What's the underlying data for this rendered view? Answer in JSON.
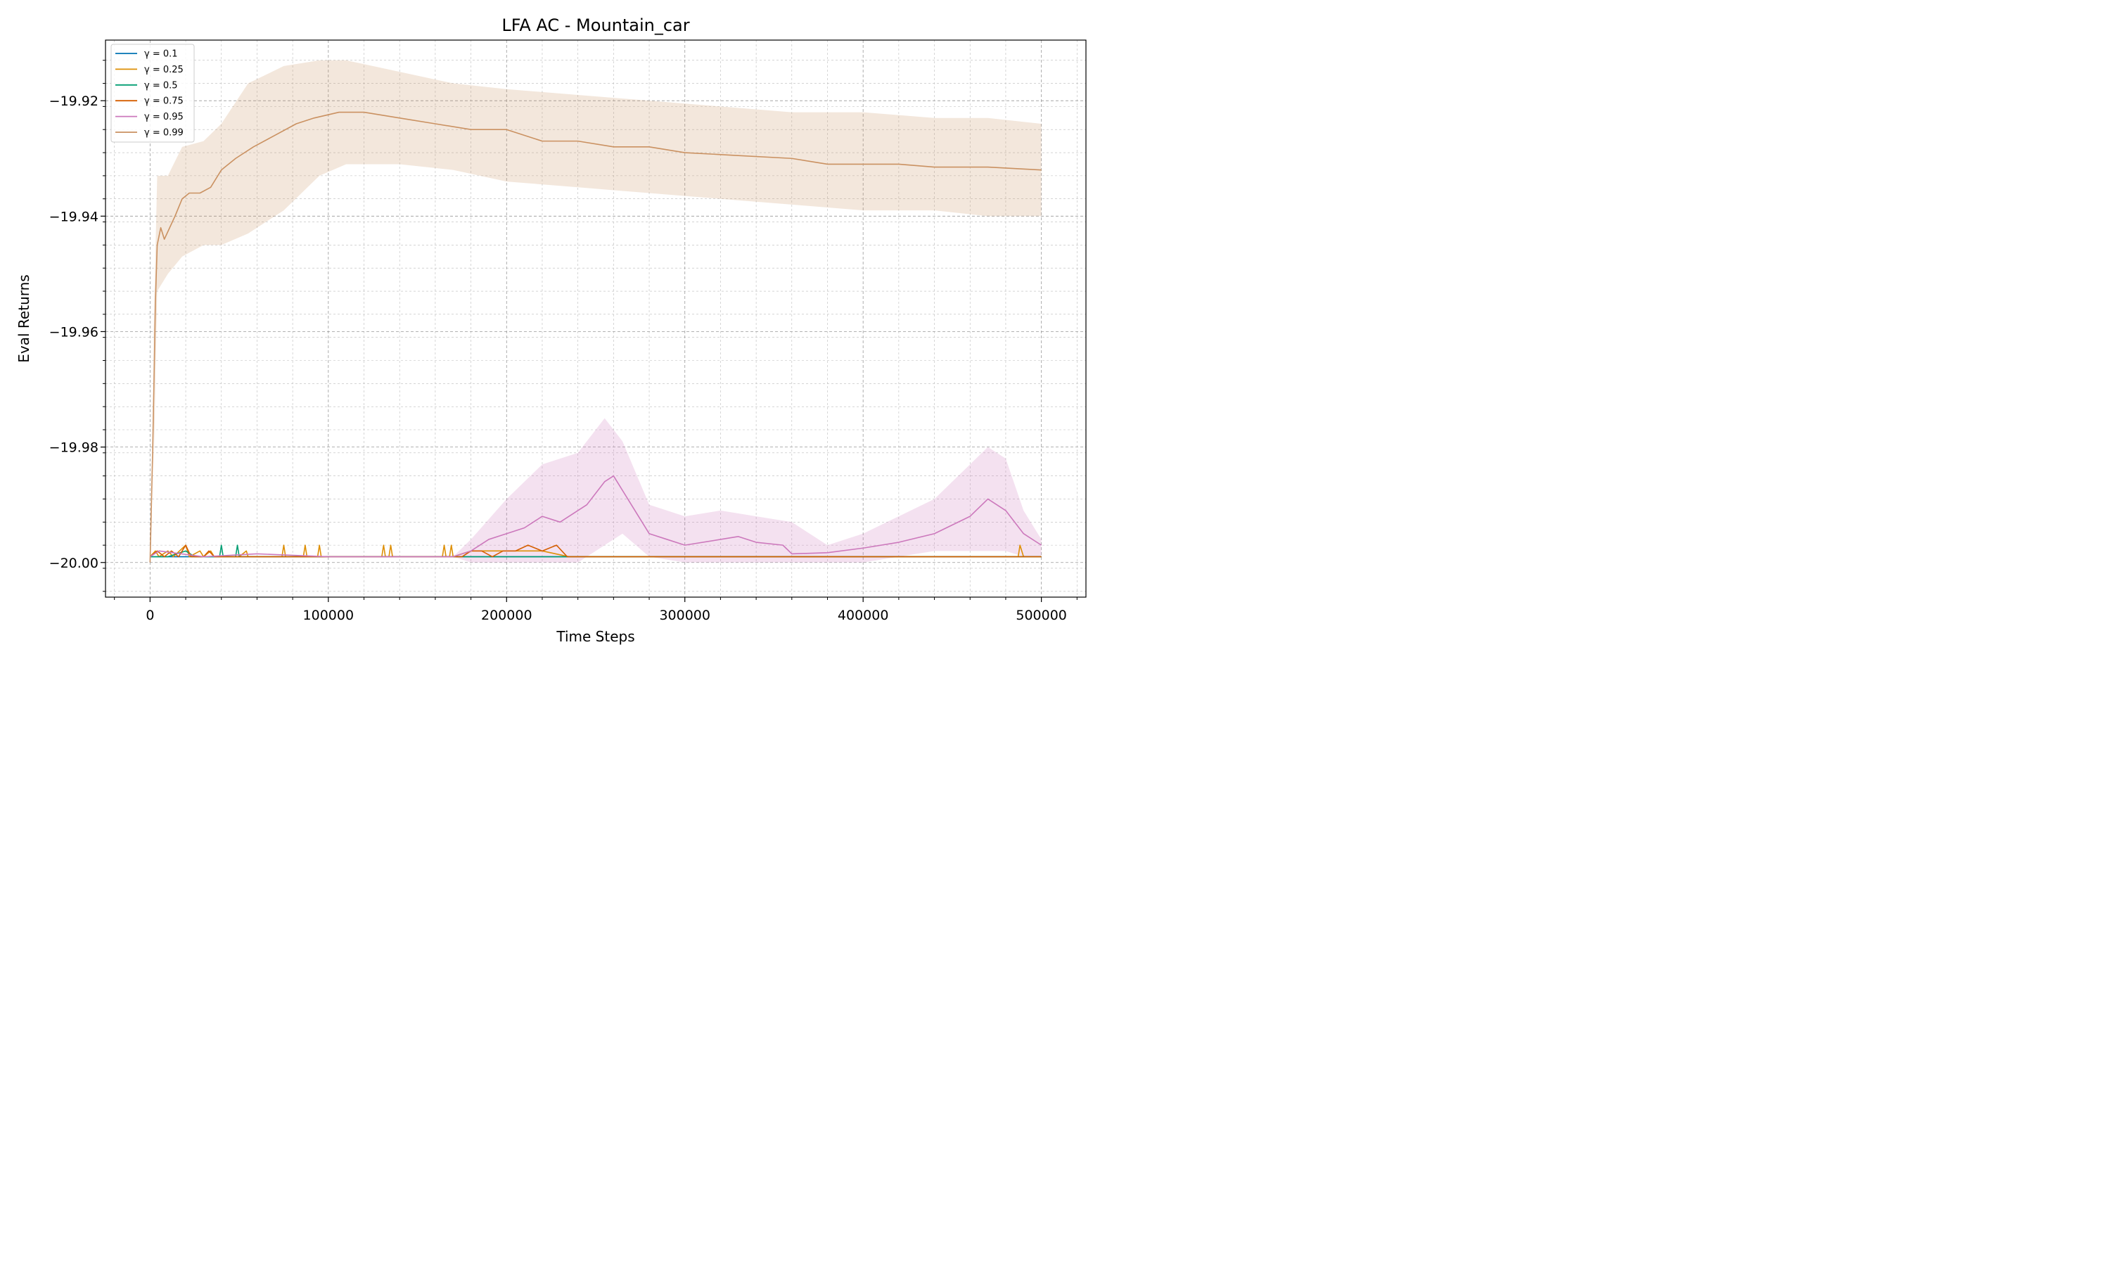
{
  "chart_data": {
    "type": "line",
    "title": "LFA AC - Mountain_car",
    "xlabel": "Time Steps",
    "ylabel": "Eval Returns",
    "xlim": [
      -25000,
      525000
    ],
    "ylim": [
      -20.006,
      -19.9095
    ],
    "x_major_ticks": [
      0,
      100000,
      200000,
      300000,
      400000,
      500000
    ],
    "x_tick_labels": [
      "0",
      "100000",
      "200000",
      "300000",
      "400000",
      "500000"
    ],
    "y_major_ticks": [
      -20.0,
      -19.98,
      -19.96,
      -19.94,
      -19.92
    ],
    "y_tick_labels": [
      "−20.00",
      "−19.98",
      "−19.96",
      "−19.94",
      "−19.92"
    ],
    "grid": true,
    "legend_position": "top-left",
    "series": [
      {
        "name": "γ = 0.1",
        "color": "#0173b2",
        "line": [
          [
            0,
            -19.999
          ],
          [
            20000,
            -19.999
          ],
          [
            60000,
            -19.999
          ],
          [
            200000,
            -19.999
          ],
          [
            500000,
            -19.999
          ]
        ]
      },
      {
        "name": "γ = 0.25",
        "color": "#de8f05",
        "line": [
          [
            0,
            -19.999
          ],
          [
            3000,
            -19.998
          ],
          [
            5000,
            -19.999
          ],
          [
            10000,
            -19.998
          ],
          [
            13000,
            -19.999
          ],
          [
            20000,
            -19.997
          ],
          [
            22000,
            -19.999
          ],
          [
            28000,
            -19.998
          ],
          [
            30000,
            -19.999
          ],
          [
            34000,
            -19.998
          ],
          [
            36000,
            -19.999
          ],
          [
            50000,
            -19.999
          ],
          [
            54000,
            -19.998
          ],
          [
            55000,
            -19.999
          ],
          [
            74000,
            -19.999
          ],
          [
            75000,
            -19.997
          ],
          [
            76000,
            -19.999
          ],
          [
            86000,
            -19.999
          ],
          [
            87000,
            -19.997
          ],
          [
            88000,
            -19.999
          ],
          [
            94000,
            -19.999
          ],
          [
            95000,
            -19.997
          ],
          [
            96000,
            -19.999
          ],
          [
            130000,
            -19.999
          ],
          [
            131000,
            -19.997
          ],
          [
            132000,
            -19.999
          ],
          [
            134000,
            -19.999
          ],
          [
            135000,
            -19.997
          ],
          [
            136000,
            -19.999
          ],
          [
            164000,
            -19.999
          ],
          [
            165000,
            -19.997
          ],
          [
            166000,
            -19.999
          ],
          [
            168000,
            -19.999
          ],
          [
            169000,
            -19.997
          ],
          [
            170000,
            -19.999
          ],
          [
            180000,
            -19.998
          ],
          [
            190000,
            -19.998
          ],
          [
            200000,
            -19.998
          ],
          [
            210000,
            -19.998
          ],
          [
            220000,
            -19.998
          ],
          [
            235000,
            -19.999
          ],
          [
            487000,
            -19.999
          ],
          [
            488000,
            -19.997
          ],
          [
            490000,
            -19.999
          ],
          [
            500000,
            -19.999
          ]
        ],
        "band": []
      },
      {
        "name": "γ = 0.5",
        "color": "#029e73",
        "line": [
          [
            0,
            -19.999
          ],
          [
            10000,
            -19.999
          ],
          [
            20000,
            -19.998
          ],
          [
            25000,
            -19.999
          ],
          [
            39000,
            -19.999
          ],
          [
            40000,
            -19.997
          ],
          [
            41000,
            -19.999
          ],
          [
            48000,
            -19.999
          ],
          [
            49000,
            -19.997
          ],
          [
            50000,
            -19.999
          ],
          [
            235000,
            -19.999
          ],
          [
            500000,
            -19.999
          ]
        ]
      },
      {
        "name": "γ = 0.75",
        "color": "#d55e00",
        "line": [
          [
            0,
            -19.999
          ],
          [
            4000,
            -19.998
          ],
          [
            8000,
            -19.999
          ],
          [
            12000,
            -19.998
          ],
          [
            16000,
            -19.999
          ],
          [
            20000,
            -19.997
          ],
          [
            23000,
            -19.999
          ],
          [
            30000,
            -19.999
          ],
          [
            33000,
            -19.998
          ],
          [
            36000,
            -19.999
          ],
          [
            175000,
            -19.999
          ],
          [
            180000,
            -19.998
          ],
          [
            186000,
            -19.998
          ],
          [
            192000,
            -19.999
          ],
          [
            198000,
            -19.998
          ],
          [
            205000,
            -19.998
          ],
          [
            212000,
            -19.997
          ],
          [
            220000,
            -19.998
          ],
          [
            228000,
            -19.997
          ],
          [
            234000,
            -19.999
          ],
          [
            240000,
            -19.999
          ],
          [
            500000,
            -19.999
          ]
        ]
      },
      {
        "name": "γ = 0.95",
        "color": "#cc78bc",
        "line": [
          [
            0,
            -19.999
          ],
          [
            5000,
            -19.998
          ],
          [
            30000,
            -19.999
          ],
          [
            60000,
            -19.9985
          ],
          [
            100000,
            -19.999
          ],
          [
            170000,
            -19.999
          ],
          [
            180000,
            -19.998
          ],
          [
            190000,
            -19.996
          ],
          [
            200000,
            -19.995
          ],
          [
            210000,
            -19.994
          ],
          [
            220000,
            -19.992
          ],
          [
            230000,
            -19.993
          ],
          [
            245000,
            -19.99
          ],
          [
            255000,
            -19.986
          ],
          [
            260000,
            -19.985
          ],
          [
            270000,
            -19.99
          ],
          [
            280000,
            -19.995
          ],
          [
            290000,
            -19.996
          ],
          [
            300000,
            -19.997
          ],
          [
            320000,
            -19.996
          ],
          [
            330000,
            -19.9955
          ],
          [
            340000,
            -19.9965
          ],
          [
            355000,
            -19.997
          ],
          [
            360000,
            -19.9985
          ],
          [
            380000,
            -19.9983
          ],
          [
            400000,
            -19.9975
          ],
          [
            420000,
            -19.9965
          ],
          [
            440000,
            -19.995
          ],
          [
            460000,
            -19.992
          ],
          [
            470000,
            -19.989
          ],
          [
            480000,
            -19.991
          ],
          [
            490000,
            -19.995
          ],
          [
            500000,
            -19.997
          ]
        ],
        "band": [
          [
            170000,
            -19.999,
            -19.999
          ],
          [
            180000,
            -19.996,
            -20.0
          ],
          [
            200000,
            -19.989,
            -20.0
          ],
          [
            220000,
            -19.983,
            -20.0
          ],
          [
            240000,
            -19.981,
            -20.0
          ],
          [
            255000,
            -19.975,
            -19.997
          ],
          [
            265000,
            -19.979,
            -19.995
          ],
          [
            280000,
            -19.99,
            -19.999
          ],
          [
            300000,
            -19.992,
            -20.0
          ],
          [
            320000,
            -19.991,
            -20.0
          ],
          [
            340000,
            -19.992,
            -20.0
          ],
          [
            360000,
            -19.993,
            -20.0
          ],
          [
            380000,
            -19.997,
            -20.0
          ],
          [
            400000,
            -19.995,
            -20.0
          ],
          [
            420000,
            -19.992,
            -19.999
          ],
          [
            440000,
            -19.989,
            -19.998
          ],
          [
            460000,
            -19.983,
            -19.998
          ],
          [
            470000,
            -19.98,
            -19.998
          ],
          [
            480000,
            -19.982,
            -19.998
          ],
          [
            490000,
            -19.991,
            -19.999
          ],
          [
            500000,
            -19.996,
            -19.999
          ]
        ]
      },
      {
        "name": "γ = 0.99",
        "color": "#ca9161",
        "line": [
          [
            0,
            -20.0
          ],
          [
            1500,
            -19.98
          ],
          [
            3000,
            -19.955
          ],
          [
            4000,
            -19.945
          ],
          [
            6000,
            -19.942
          ],
          [
            8000,
            -19.944
          ],
          [
            11000,
            -19.942
          ],
          [
            14000,
            -19.94
          ],
          [
            18000,
            -19.937
          ],
          [
            22000,
            -19.936
          ],
          [
            28000,
            -19.936
          ],
          [
            34000,
            -19.935
          ],
          [
            40000,
            -19.932
          ],
          [
            48000,
            -19.93
          ],
          [
            58000,
            -19.928
          ],
          [
            70000,
            -19.926
          ],
          [
            82000,
            -19.924
          ],
          [
            92000,
            -19.923
          ],
          [
            106000,
            -19.922
          ],
          [
            120000,
            -19.922
          ],
          [
            140000,
            -19.923
          ],
          [
            160000,
            -19.924
          ],
          [
            180000,
            -19.925
          ],
          [
            200000,
            -19.925
          ],
          [
            220000,
            -19.927
          ],
          [
            240000,
            -19.927
          ],
          [
            260000,
            -19.928
          ],
          [
            280000,
            -19.928
          ],
          [
            300000,
            -19.929
          ],
          [
            330000,
            -19.9295
          ],
          [
            360000,
            -19.93
          ],
          [
            380000,
            -19.931
          ],
          [
            400000,
            -19.931
          ],
          [
            420000,
            -19.931
          ],
          [
            440000,
            -19.9315
          ],
          [
            470000,
            -19.9315
          ],
          [
            500000,
            -19.932
          ]
        ],
        "band": [
          [
            2000,
            -19.96,
            -19.985
          ],
          [
            4000,
            -19.933,
            -19.953
          ],
          [
            10000,
            -19.933,
            -19.95
          ],
          [
            18000,
            -19.928,
            -19.947
          ],
          [
            30000,
            -19.927,
            -19.945
          ],
          [
            40000,
            -19.924,
            -19.945
          ],
          [
            55000,
            -19.917,
            -19.943
          ],
          [
            75000,
            -19.914,
            -19.939
          ],
          [
            95000,
            -19.913,
            -19.933
          ],
          [
            110000,
            -19.913,
            -19.931
          ],
          [
            140000,
            -19.915,
            -19.931
          ],
          [
            170000,
            -19.917,
            -19.932
          ],
          [
            200000,
            -19.918,
            -19.934
          ],
          [
            240000,
            -19.919,
            -19.935
          ],
          [
            280000,
            -19.92,
            -19.936
          ],
          [
            320000,
            -19.921,
            -19.937
          ],
          [
            360000,
            -19.922,
            -19.938
          ],
          [
            400000,
            -19.922,
            -19.939
          ],
          [
            440000,
            -19.923,
            -19.939
          ],
          [
            470000,
            -19.923,
            -19.94
          ],
          [
            500000,
            -19.924,
            -19.94
          ]
        ]
      }
    ]
  }
}
